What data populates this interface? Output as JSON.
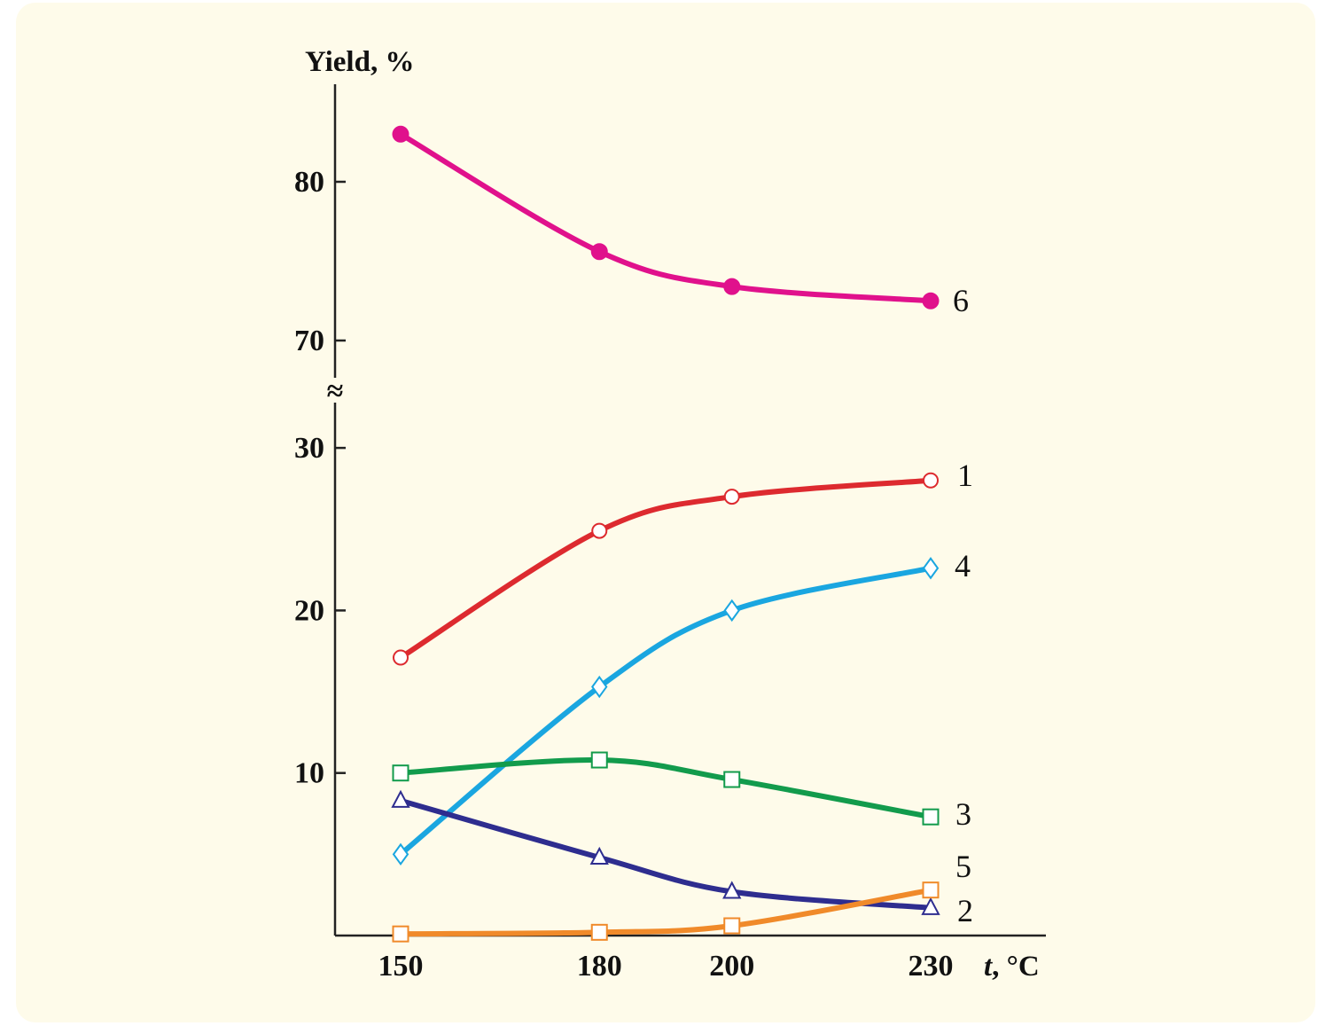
{
  "chart_data": {
    "type": "line",
    "title": "",
    "ylabel": "Yield, %",
    "xlabel_italic": "t",
    "xlabel_unit": ", °C",
    "x": [
      150,
      180,
      200,
      230
    ],
    "x_tick_labels": [
      "150",
      "180",
      "200",
      "230"
    ],
    "xlim": [
      140,
      240
    ],
    "y_break_symbol": "≈",
    "y_segments": [
      {
        "range": [
          0,
          33
        ],
        "ticks": [
          10,
          20,
          30
        ],
        "tick_labels": [
          "10",
          "20",
          "30"
        ]
      },
      {
        "range": [
          68,
          85
        ],
        "ticks": [
          70,
          80
        ],
        "tick_labels": [
          "70",
          "80"
        ]
      }
    ],
    "grid": false,
    "legend": "inline-labels",
    "series": [
      {
        "label": "6",
        "values": [
          83.0,
          75.6,
          73.4,
          72.5
        ],
        "color": "#e0118c",
        "marker": "filled-circle",
        "segment": 1
      },
      {
        "label": "1",
        "values": [
          17.1,
          24.9,
          27.0,
          28.0
        ],
        "color": "#dd2a2f",
        "marker": "circle",
        "segment": 0
      },
      {
        "label": "4",
        "values": [
          5.0,
          15.3,
          20.0,
          22.6
        ],
        "color": "#1aa6e0",
        "marker": "diamond",
        "segment": 0
      },
      {
        "label": "3",
        "values": [
          10.0,
          10.8,
          9.6,
          7.3
        ],
        "color": "#129b4c",
        "marker": "square",
        "segment": 0
      },
      {
        "label": "5",
        "values": [
          8.3,
          4.8,
          2.7,
          1.7
        ],
        "color": "#2e2d8f",
        "marker": "triangle",
        "segment": 0
      },
      {
        "label": "2",
        "values": [
          0.1,
          0.2,
          0.6,
          2.8
        ],
        "color": "#f08a2a",
        "marker": "square",
        "segment": 0
      }
    ]
  }
}
